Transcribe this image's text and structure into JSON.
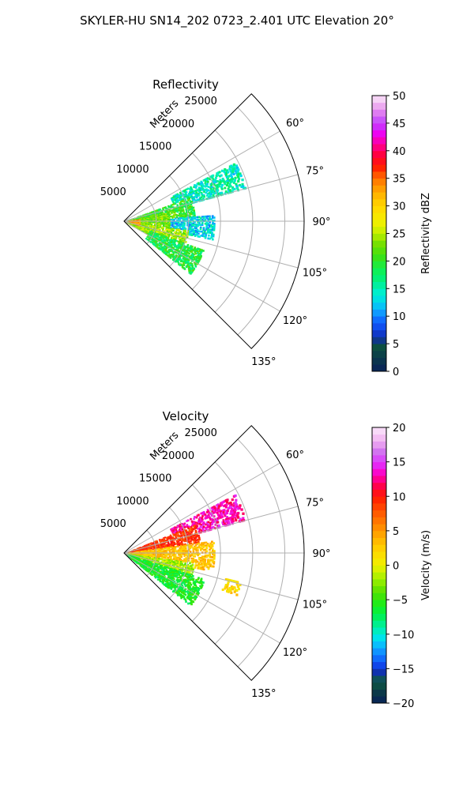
{
  "figure": {
    "suptitle": "SKYLER-HU  SN14_202  0723_2.401 UTC Elevation 20°"
  },
  "chart_data": [
    {
      "type": "heatmap",
      "projection": "polar-sector",
      "title": "Reflectivity",
      "radial_label": "Meters",
      "range_ticks": [
        5000,
        10000,
        15000,
        20000,
        25000
      ],
      "range_tick_labels": [
        "5000",
        "10000",
        "15000",
        "20000",
        "25000"
      ],
      "rmax": 28000,
      "azimuth_range": [
        45,
        135
      ],
      "azimuth_ticks": [
        60,
        75,
        90,
        105,
        120,
        135
      ],
      "azimuth_tick_labels": [
        "60°",
        "75°",
        "90°",
        "105°",
        "120°",
        "135°"
      ],
      "grid": true,
      "colorbar": {
        "label": "Reflectivity dBZ",
        "range": [
          0,
          50
        ],
        "ticks": [
          0,
          5,
          10,
          15,
          20,
          25,
          30,
          35,
          40,
          45,
          50
        ],
        "tick_labels": [
          "0",
          "5",
          "10",
          "15",
          "20",
          "25",
          "30",
          "35",
          "40",
          "45",
          "50"
        ],
        "levels": 40
      },
      "echo_regions": [
        {
          "az": [
            62,
            74
          ],
          "range": [
            8000,
            19500
          ],
          "value": 15
        },
        {
          "az": [
            70,
            86
          ],
          "range": [
            300,
            11000
          ],
          "value": 20
        },
        {
          "az": [
            78,
            98
          ],
          "range": [
            300,
            8000
          ],
          "value": 23
        },
        {
          "az": [
            86,
            101
          ],
          "range": [
            7000,
            14000
          ],
          "value": 13
        },
        {
          "az": [
            98,
            118
          ],
          "range": [
            300,
            10000
          ],
          "value": 24
        },
        {
          "az": [
            110,
            128
          ],
          "range": [
            4000,
            13000
          ],
          "value": 19
        },
        {
          "az": [
            82,
            108
          ],
          "range": [
            300,
            2500
          ],
          "value": 33
        }
      ]
    },
    {
      "type": "heatmap",
      "projection": "polar-sector",
      "title": "Velocity",
      "radial_label": "Meters",
      "range_ticks": [
        5000,
        10000,
        15000,
        20000,
        25000
      ],
      "range_tick_labels": [
        "5000",
        "10000",
        "15000",
        "20000",
        "25000"
      ],
      "rmax": 28000,
      "azimuth_range": [
        45,
        135
      ],
      "azimuth_ticks": [
        60,
        75,
        90,
        105,
        120,
        135
      ],
      "azimuth_tick_labels": [
        "60°",
        "75°",
        "90°",
        "105°",
        "120°",
        "135°"
      ],
      "grid": true,
      "colorbar": {
        "label": "Velocity (m/s)",
        "range": [
          -20,
          20
        ],
        "ticks": [
          -20,
          -15,
          -10,
          -5,
          0,
          5,
          10,
          15,
          20
        ],
        "tick_labels": [
          "−20",
          "−15",
          "−10",
          "−5",
          "0",
          "5",
          "10",
          "15",
          "20"
        ],
        "levels": 40
      },
      "echo_regions": [
        {
          "az": [
            62,
            74
          ],
          "range": [
            8000,
            19500
          ],
          "value": 13
        },
        {
          "az": [
            68,
            86
          ],
          "range": [
            300,
            12000
          ],
          "value": 9
        },
        {
          "az": [
            82,
            101
          ],
          "range": [
            300,
            14000
          ],
          "value": 3
        },
        {
          "az": [
            98,
            112
          ],
          "range": [
            300,
            11000
          ],
          "value": -2
        },
        {
          "az": [
            108,
            128
          ],
          "range": [
            300,
            13000
          ],
          "value": -6
        },
        {
          "az": [
            104,
            110
          ],
          "range": [
            16000,
            18500
          ],
          "value": 2
        }
      ]
    }
  ]
}
